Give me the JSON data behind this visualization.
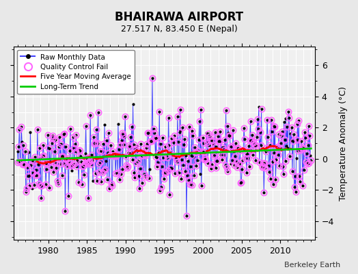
{
  "title": "BHAIRAWA AIRPORT",
  "subtitle": "27.517 N, 83.450 E (Nepal)",
  "ylabel": "Temperature Anomaly (°C)",
  "attribution": "Berkeley Earth",
  "background_color": "#e8e8e8",
  "plot_bg_color": "#f0f0f0",
  "xlim": [
    1975.5,
    2014.5
  ],
  "ylim": [
    -5.2,
    7.2
  ],
  "yticks": [
    -4,
    -2,
    0,
    2,
    4,
    6
  ],
  "xticks": [
    1980,
    1985,
    1990,
    1995,
    2000,
    2005,
    2010
  ],
  "raw_data_color": "#4444ff",
  "raw_dot_color": "#000000",
  "qc_fail_color": "#ff66ff",
  "moving_avg_color": "#ff0000",
  "trend_color": "#00cc00",
  "seed": 42,
  "n_points": 444,
  "start_year": 1976.0,
  "end_year": 2013.0
}
